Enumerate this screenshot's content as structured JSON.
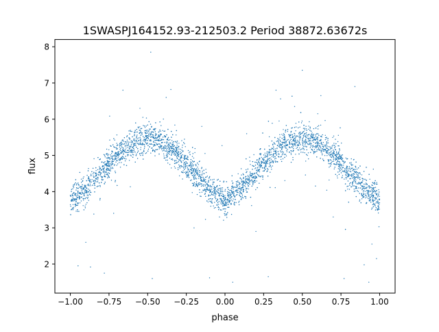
{
  "chart_data": {
    "type": "scatter",
    "title": "1SWASPJ164152.93-212503.2 Period 38872.63672s",
    "xlabel": "phase",
    "ylabel": "flux",
    "xlim": [
      -1.1,
      1.1
    ],
    "ylim": [
      1.2,
      8.2
    ],
    "xticks": [
      -1.0,
      -0.75,
      -0.5,
      -0.25,
      0.0,
      0.25,
      0.5,
      0.75,
      1.0
    ],
    "xtick_labels": [
      "−1.00",
      "−0.75",
      "−0.50",
      "−0.25",
      "0.00",
      "0.25",
      "0.50",
      "0.75",
      "1.00"
    ],
    "yticks": [
      2,
      3,
      4,
      5,
      6,
      7,
      8
    ],
    "ytick_labels": [
      "2",
      "3",
      "4",
      "5",
      "6",
      "7",
      "8"
    ],
    "grid": false,
    "point_color": "#1f77b4",
    "phase": [
      -1.0,
      -0.9,
      -0.8,
      -0.7,
      -0.6,
      -0.5,
      -0.4,
      -0.3,
      -0.2,
      -0.1,
      0.0,
      0.1,
      0.2,
      0.3,
      0.4,
      0.5,
      0.6,
      0.7,
      0.8,
      0.9,
      1.0
    ],
    "median_flux": [
      3.75,
      4.05,
      4.55,
      5.0,
      5.35,
      5.5,
      5.35,
      5.0,
      4.55,
      4.05,
      3.75,
      4.05,
      4.55,
      5.0,
      5.35,
      5.5,
      5.35,
      5.0,
      4.55,
      4.05,
      3.75
    ],
    "outliers": [
      [
        -0.66,
        6.8
      ],
      [
        -0.48,
        7.85
      ],
      [
        -0.38,
        6.6
      ],
      [
        -0.47,
        1.6
      ],
      [
        0.33,
        6.8
      ],
      [
        0.5,
        7.35
      ],
      [
        0.62,
        6.65
      ],
      [
        0.84,
        6.9
      ],
      [
        0.77,
        1.6
      ],
      [
        0.93,
        1.5
      ],
      [
        0.28,
        1.65
      ],
      [
        0.05,
        1.5
      ],
      [
        -0.1,
        1.62
      ],
      [
        -0.95,
        1.95
      ],
      [
        -0.78,
        1.75
      ],
      [
        -0.87,
        1.92
      ],
      [
        0.9,
        1.98
      ],
      [
        -0.35,
        6.82
      ],
      [
        0.6,
        6.15
      ],
      [
        -0.55,
        6.3
      ],
      [
        0.45,
        6.35
      ],
      [
        -0.15,
        5.8
      ],
      [
        0.14,
        5.6
      ],
      [
        -0.9,
        2.6
      ],
      [
        0.95,
        2.55
      ],
      [
        -0.2,
        3.0
      ],
      [
        0.2,
        2.9
      ],
      [
        -0.72,
        3.4
      ],
      [
        0.7,
        3.3
      ],
      [
        0.98,
        2.15
      ]
    ]
  }
}
